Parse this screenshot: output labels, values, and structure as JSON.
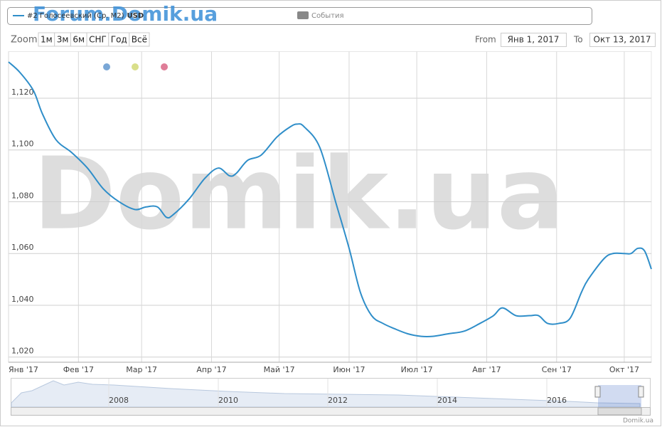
{
  "chart_data": {
    "type": "line",
    "series": [
      {
        "name": "#2 Голосеевский (Ср. М2)",
        "currency": "USD",
        "color": "#2f8ec9",
        "x": [
          "2017-01-01",
          "2017-01-06",
          "2017-01-12",
          "2017-01-16",
          "2017-01-22",
          "2017-01-29",
          "2017-02-05",
          "2017-02-12",
          "2017-02-19",
          "2017-02-26",
          "2017-03-03",
          "2017-03-08",
          "2017-03-12",
          "2017-03-15",
          "2017-03-22",
          "2017-03-29",
          "2017-04-04",
          "2017-04-09",
          "2017-04-12",
          "2017-04-17",
          "2017-04-23",
          "2017-04-30",
          "2017-05-06",
          "2017-05-09",
          "2017-05-12",
          "2017-05-19",
          "2017-05-26",
          "2017-06-01",
          "2017-06-06",
          "2017-06-11",
          "2017-06-16",
          "2017-06-21",
          "2017-06-27",
          "2017-07-03",
          "2017-07-08",
          "2017-07-15",
          "2017-07-22",
          "2017-07-29",
          "2017-08-04",
          "2017-08-08",
          "2017-08-14",
          "2017-08-20",
          "2017-08-24",
          "2017-08-28",
          "2017-09-02",
          "2017-09-07",
          "2017-09-12",
          "2017-09-15",
          "2017-09-22",
          "2017-09-26",
          "2017-10-01",
          "2017-10-04",
          "2017-10-07",
          "2017-10-10",
          "2017-10-13"
        ],
        "values": [
          1134,
          1130,
          1123,
          1114,
          1104,
          1099,
          1093,
          1085,
          1080,
          1077,
          1078,
          1078,
          1074,
          1075,
          1081,
          1089,
          1093,
          1090,
          1091,
          1096,
          1098,
          1105,
          1109,
          1110,
          1109,
          1101,
          1080,
          1062,
          1045,
          1036,
          1033,
          1031,
          1029,
          1028,
          1028,
          1029,
          1030,
          1033,
          1036,
          1039,
          1036,
          1036,
          1036,
          1033,
          1033,
          1035,
          1045,
          1050,
          1058,
          1060,
          1060,
          1060,
          1062,
          1061,
          1054
        ]
      }
    ],
    "xlim": [
      "2017-01-01",
      "2017-10-13"
    ],
    "xticks": [
      {
        "value": "2017-01-01",
        "label": "Янв '17"
      },
      {
        "value": "2017-02-01",
        "label": "Фев '17"
      },
      {
        "value": "2017-03-01",
        "label": "Мар '17"
      },
      {
        "value": "2017-04-01",
        "label": "Апр '17"
      },
      {
        "value": "2017-05-01",
        "label": "Май '17"
      },
      {
        "value": "2017-06-01",
        "label": "Июн '17"
      },
      {
        "value": "2017-07-01",
        "label": "Июл '17"
      },
      {
        "value": "2017-08-01",
        "label": "Авг '17"
      },
      {
        "value": "2017-09-01",
        "label": "Сен '17"
      },
      {
        "value": "2017-10-01",
        "label": "Окт '17"
      }
    ],
    "ylim": [
      1018,
      1138
    ],
    "yticks": [
      {
        "value": 1020,
        "label": "1,020"
      },
      {
        "value": 1040,
        "label": "1,040"
      },
      {
        "value": 1060,
        "label": "1,060"
      },
      {
        "value": 1080,
        "label": "1,080"
      },
      {
        "value": 1100,
        "label": "1,100"
      },
      {
        "value": 1120,
        "label": "1,120"
      }
    ],
    "grid": true
  },
  "ui": {
    "events": "События",
    "zoom_label": "Zoom",
    "zoom_buttons": [
      "1м",
      "3м",
      "6м",
      "СНГ",
      "Год",
      "Всё"
    ],
    "from_label": "From",
    "from": "Янв 1, 2017",
    "to_label": "To",
    "to": "Окт 13, 2017",
    "watermark": "Domik.ua",
    "forum": "Forum.Domik.ua",
    "credits": "Domik.ua",
    "navigator_years": [
      "2008",
      "2010",
      "2012",
      "2014",
      "2016"
    ]
  }
}
